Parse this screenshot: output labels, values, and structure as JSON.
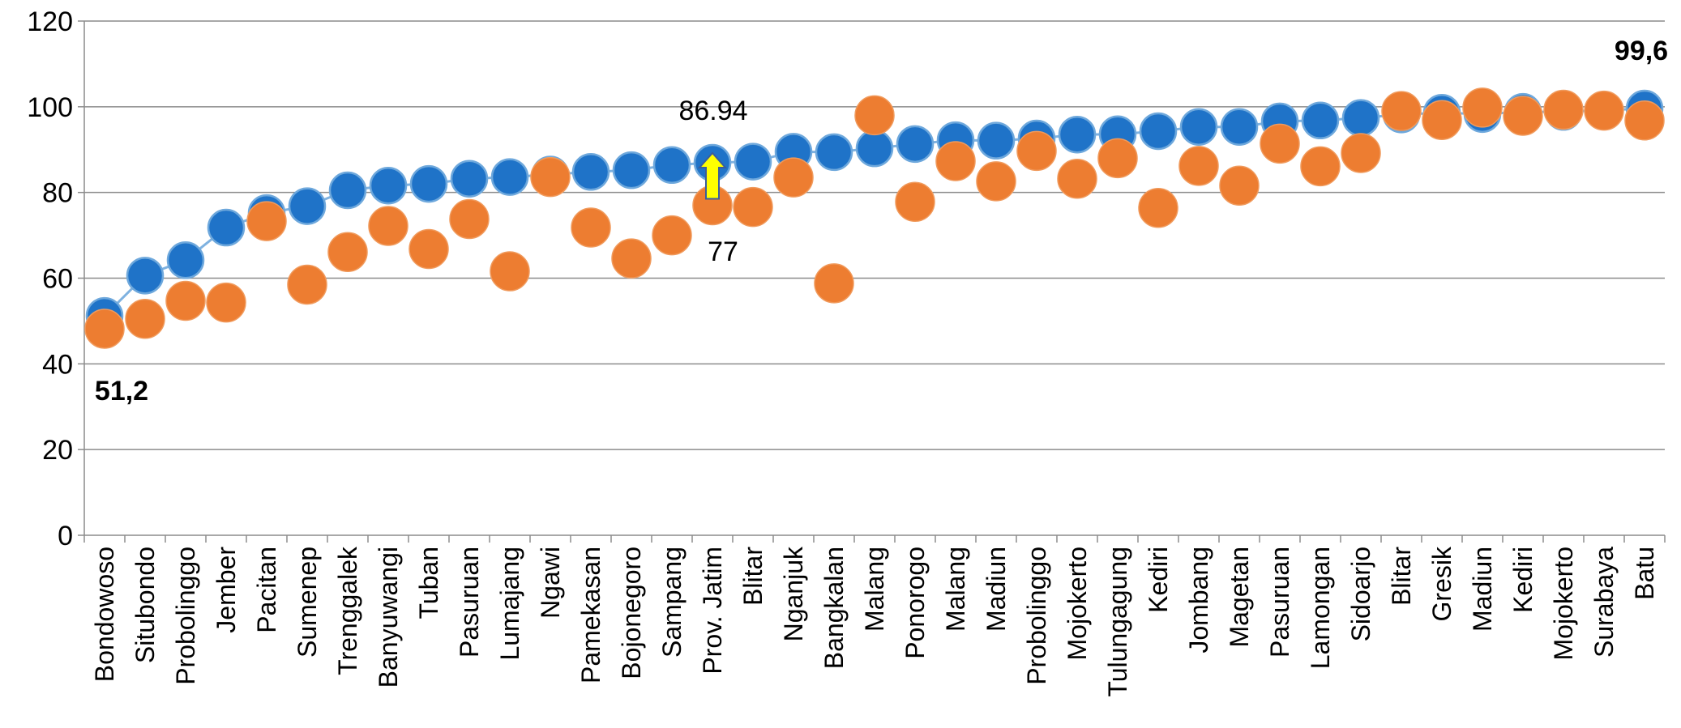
{
  "chart_data": {
    "type": "scatter",
    "categories": [
      "Bondowoso",
      "Situbondo",
      "Probolinggo",
      "Jember",
      "Pacitan",
      "Sumenep",
      "Trenggalek",
      "Banyuwangi",
      "Tuban",
      "Pasuruan",
      "Lumajang",
      "Ngawi",
      "Pamekasan",
      "Bojonegoro",
      "Sampang",
      "Prov. Jatim",
      "Blitar",
      "Nganjuk",
      "Bangkalan",
      "Malang",
      "Ponorogo",
      "Malang",
      "Madiun",
      "Probolinggo",
      "Mojokerto",
      "Tulungagung",
      "Kediri",
      "Jombang",
      "Magetan",
      "Pasuruan",
      "Lamongan",
      "Sidoarjo",
      "Blitar",
      "Gresik",
      "Madiun",
      "Kediri",
      "Mojokerto",
      "Surabaya",
      "Batu"
    ],
    "series": [
      {
        "values": [
          51.2,
          60.6,
          64.2,
          71.8,
          75.2,
          76.8,
          80.5,
          81.6,
          82.0,
          83.2,
          83.6,
          84.2,
          84.8,
          85.2,
          86.4,
          86.94,
          87.2,
          89.5,
          89.4,
          90.3,
          91.3,
          92.2,
          92.1,
          92.6,
          93.5,
          93.6,
          94.3,
          95.3,
          95.3,
          96.6,
          96.8,
          97.4,
          98.2,
          98.6,
          98.3,
          98.8,
          98.8,
          99.2,
          99.6
        ],
        "color": "#1f73c8"
      },
      {
        "values": [
          48.2,
          50.5,
          54.7,
          54.3,
          73.3,
          58.5,
          66.1,
          72.2,
          66.8,
          73.8,
          61.6,
          83.6,
          71.8,
          64.6,
          70.0,
          77.0,
          76.6,
          83.5,
          58.8,
          98.0,
          77.8,
          87.3,
          82.6,
          89.7,
          83.2,
          88.0,
          76.4,
          86.2,
          81.6,
          91.4,
          86.1,
          89.2,
          99.0,
          96.9,
          99.8,
          97.9,
          99.3,
          99.1,
          96.8
        ],
        "color": "#ed7d31"
      }
    ],
    "ylim": [
      0,
      120
    ],
    "yticks": [
      "0",
      "20",
      "40",
      "60",
      "80",
      "100",
      "120"
    ],
    "grid": true,
    "annotations": {
      "min_label": "51,2",
      "max_label": "99,6",
      "prov_value_blue": "86.94",
      "prov_value_orange": "77",
      "arrow_color": "#ffff00"
    }
  }
}
